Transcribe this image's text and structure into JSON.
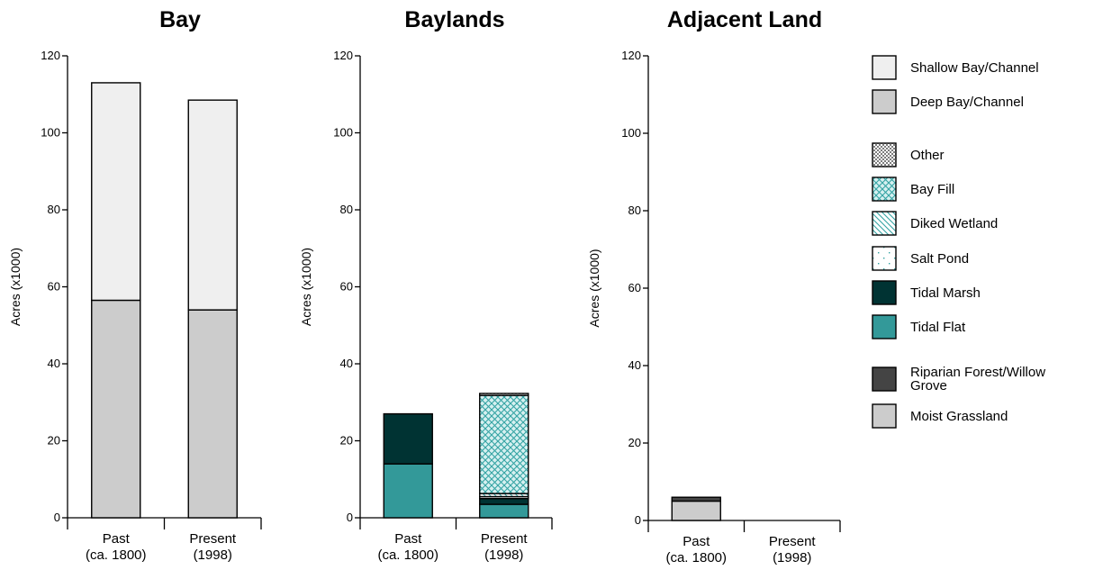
{
  "colors": {
    "shallow_bay": "#efefef",
    "deep_bay": "#cccccc",
    "other": "#ffffff",
    "bay_fill": "#d4efef",
    "diked_wetland": "#ffffff",
    "salt_pond": "#ffffff",
    "tidal_marsh": "#003333",
    "tidal_flat": "#339999",
    "riparian": "#444444",
    "moist_grassland": "#cccccc",
    "teal_pattern": "#33a3a3"
  },
  "legend": {
    "items": [
      {
        "key": "shallow_bay",
        "label": "Shallow Bay/Channel",
        "fill": "#efefef",
        "pattern": "none"
      },
      {
        "key": "deep_bay",
        "label": "Deep Bay/Channel",
        "fill": "#cccccc",
        "pattern": "none"
      },
      {
        "key": "other",
        "label": "Other",
        "fill": "#ffffff",
        "pattern": "dots"
      },
      {
        "key": "bay_fill",
        "label": "Bay Fill",
        "fill": "#d4efef",
        "pattern": "crosshatch"
      },
      {
        "key": "diked_wetland",
        "label": "Diked Wetland",
        "fill": "#ffffff",
        "pattern": "diagonal"
      },
      {
        "key": "salt_pond",
        "label": "Salt Pond",
        "fill": "#ffffff",
        "pattern": "sparse"
      },
      {
        "key": "tidal_marsh",
        "label": "Tidal Marsh",
        "fill": "#003333",
        "pattern": "none"
      },
      {
        "key": "tidal_flat",
        "label": "Tidal Flat",
        "fill": "#339999",
        "pattern": "none"
      },
      {
        "key": "riparian",
        "label": "Riparian Forest/Willow Grove",
        "fill": "#444444",
        "pattern": "none"
      },
      {
        "key": "moist_grassland",
        "label": "Moist Grassland",
        "fill": "#cccccc",
        "pattern": "none"
      }
    ]
  },
  "chart_data": [
    {
      "type": "bar",
      "stacked": true,
      "title": "Bay",
      "ylabel": "Acres (x1000)",
      "ylim": [
        0,
        120
      ],
      "yticks": [
        0,
        20,
        40,
        60,
        80,
        100,
        120
      ],
      "categories": [
        {
          "line1": "Past",
          "line2": "(ca. 1800)"
        },
        {
          "line1": "Present",
          "line2": "(1998)"
        }
      ],
      "series": [
        {
          "name": "Deep Bay/Channel",
          "key": "deep_bay",
          "values": [
            56.5,
            54
          ]
        },
        {
          "name": "Shallow Bay/Channel",
          "key": "shallow_bay",
          "values": [
            56.5,
            54.5
          ]
        }
      ]
    },
    {
      "type": "bar",
      "stacked": true,
      "title": "Baylands",
      "ylabel": "Acres (x1000)",
      "ylim": [
        0,
        120
      ],
      "yticks": [
        0,
        20,
        40,
        60,
        80,
        100,
        120
      ],
      "categories": [
        {
          "line1": "Past",
          "line2": "(ca. 1800)"
        },
        {
          "line1": "Present",
          "line2": "(1998)"
        }
      ],
      "series": [
        {
          "name": "Tidal Flat",
          "key": "tidal_flat",
          "values": [
            14,
            3.5
          ]
        },
        {
          "name": "Tidal Marsh",
          "key": "tidal_marsh",
          "values": [
            13,
            1.5
          ]
        },
        {
          "name": "Salt Pond",
          "key": "salt_pond",
          "values": [
            0,
            0.5
          ]
        },
        {
          "name": "Diked Wetland",
          "key": "diked_wetland",
          "values": [
            0,
            0.8
          ]
        },
        {
          "name": "Bay Fill",
          "key": "bay_fill",
          "values": [
            0,
            25.5
          ]
        },
        {
          "name": "Other",
          "key": "other",
          "values": [
            0,
            0.5
          ]
        }
      ]
    },
    {
      "type": "bar",
      "stacked": true,
      "title": "Adjacent Land",
      "ylabel": "Acres (x1000)",
      "ylim": [
        0,
        120
      ],
      "yticks": [
        0,
        20,
        40,
        60,
        80,
        100,
        120
      ],
      "categories": [
        {
          "line1": "Past",
          "line2": "(ca. 1800)"
        },
        {
          "line1": "Present",
          "line2": "(1998)"
        }
      ],
      "series": [
        {
          "name": "Moist Grassland",
          "key": "moist_grassland",
          "values": [
            5,
            0
          ]
        },
        {
          "name": "Riparian Forest/Willow Grove",
          "key": "riparian",
          "values": [
            1,
            0
          ]
        }
      ]
    }
  ]
}
